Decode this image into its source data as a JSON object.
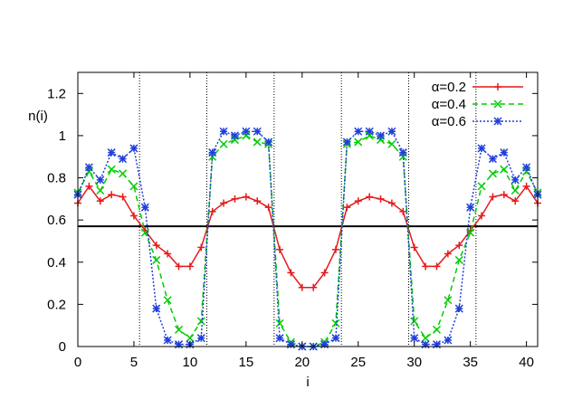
{
  "chart_data": {
    "type": "line",
    "xlabel": "i",
    "ylabel": "n(i)",
    "xlim": [
      0,
      41
    ],
    "ylim": [
      0,
      1.3
    ],
    "xticks": [
      0,
      5,
      10,
      15,
      20,
      25,
      30,
      35,
      40
    ],
    "yticks": [
      0,
      0.2,
      0.4,
      0.6,
      0.8,
      1,
      1.2
    ],
    "xtick_labels": [
      "0",
      "5",
      "10",
      "15",
      "20",
      "25",
      "30",
      "35",
      "40"
    ],
    "ytick_labels": [
      "0",
      "0.2",
      "0.4",
      "0.6",
      "0.8",
      "1",
      "1.2"
    ],
    "grid": false,
    "legend_position": "top-right",
    "horizontal_line": 0.57,
    "vertical_dotted_lines": [
      5.5,
      11.5,
      17.5,
      23.5,
      29.5,
      35.5
    ],
    "x": [
      0,
      1,
      2,
      3,
      4,
      5,
      6,
      7,
      8,
      9,
      10,
      11,
      12,
      13,
      14,
      15,
      16,
      17,
      18,
      19,
      20,
      21,
      22,
      23,
      24,
      25,
      26,
      27,
      28,
      29,
      30,
      31,
      32,
      33,
      34,
      35,
      36,
      37,
      38,
      39,
      40,
      41
    ],
    "series": [
      {
        "name": "α=0.2",
        "color": "#e41a1c",
        "marker": "plus",
        "dash": "solid",
        "values": [
          0.68,
          0.76,
          0.69,
          0.72,
          0.71,
          0.62,
          0.55,
          0.48,
          0.44,
          0.38,
          0.38,
          0.47,
          0.64,
          0.68,
          0.7,
          0.71,
          0.69,
          0.66,
          0.46,
          0.35,
          0.28,
          0.28,
          0.35,
          0.46,
          0.66,
          0.69,
          0.71,
          0.7,
          0.68,
          0.64,
          0.47,
          0.38,
          0.38,
          0.44,
          0.48,
          0.55,
          0.62,
          0.71,
          0.72,
          0.69,
          0.76,
          0.68
        ]
      },
      {
        "name": "α=0.4",
        "color": "#00cc00",
        "marker": "cross",
        "dash": "dashed",
        "values": [
          0.73,
          0.83,
          0.74,
          0.84,
          0.82,
          0.76,
          0.54,
          0.41,
          0.22,
          0.08,
          0.04,
          0.12,
          0.9,
          0.96,
          0.98,
          1.0,
          0.97,
          0.96,
          0.11,
          0.02,
          0.0,
          0.0,
          0.02,
          0.11,
          0.96,
          0.97,
          1.0,
          0.98,
          0.96,
          0.9,
          0.12,
          0.04,
          0.08,
          0.22,
          0.41,
          0.54,
          0.76,
          0.82,
          0.84,
          0.74,
          0.83,
          0.73
        ]
      },
      {
        "name": "α=0.6",
        "color": "#1f3fdc",
        "marker": "star",
        "dash": "dotted",
        "values": [
          0.72,
          0.85,
          0.79,
          0.92,
          0.89,
          0.94,
          0.66,
          0.18,
          0.03,
          0.01,
          0.01,
          0.04,
          0.92,
          1.02,
          1.0,
          1.02,
          1.02,
          0.97,
          0.04,
          0.01,
          0.0,
          0.0,
          0.01,
          0.04,
          0.97,
          1.02,
          1.02,
          1.0,
          1.02,
          0.92,
          0.04,
          0.01,
          0.01,
          0.03,
          0.18,
          0.66,
          0.94,
          0.89,
          0.92,
          0.79,
          0.85,
          0.72
        ]
      }
    ]
  }
}
